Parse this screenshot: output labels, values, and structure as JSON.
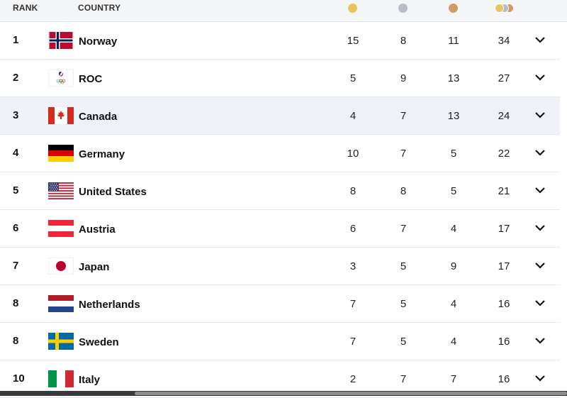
{
  "header": {
    "rank": "RANK",
    "country": "COUNTRY"
  },
  "colors": {
    "gold": "#e8c45a",
    "silver": "#b9bcc4",
    "bronze": "#cf9b6a",
    "highlight_row": "#eef2f8"
  },
  "rows": [
    {
      "rank": "1",
      "country": "Norway",
      "gold": "15",
      "silver": "8",
      "bronze": "11",
      "total": "34"
    },
    {
      "rank": "2",
      "country": "ROC",
      "gold": "5",
      "silver": "9",
      "bronze": "13",
      "total": "27"
    },
    {
      "rank": "3",
      "country": "Canada",
      "gold": "4",
      "silver": "7",
      "bronze": "13",
      "total": "24"
    },
    {
      "rank": "4",
      "country": "Germany",
      "gold": "10",
      "silver": "7",
      "bronze": "5",
      "total": "22"
    },
    {
      "rank": "5",
      "country": "United States",
      "gold": "8",
      "silver": "8",
      "bronze": "5",
      "total": "21"
    },
    {
      "rank": "6",
      "country": "Austria",
      "gold": "6",
      "silver": "7",
      "bronze": "4",
      "total": "17"
    },
    {
      "rank": "7",
      "country": "Japan",
      "gold": "3",
      "silver": "5",
      "bronze": "9",
      "total": "17"
    },
    {
      "rank": "8",
      "country": "Netherlands",
      "gold": "7",
      "silver": "5",
      "bronze": "4",
      "total": "16"
    },
    {
      "rank": "8",
      "country": "Sweden",
      "gold": "7",
      "silver": "5",
      "bronze": "4",
      "total": "16"
    },
    {
      "rank": "10",
      "country": "Italy",
      "gold": "2",
      "silver": "7",
      "bronze": "7",
      "total": "16"
    }
  ]
}
